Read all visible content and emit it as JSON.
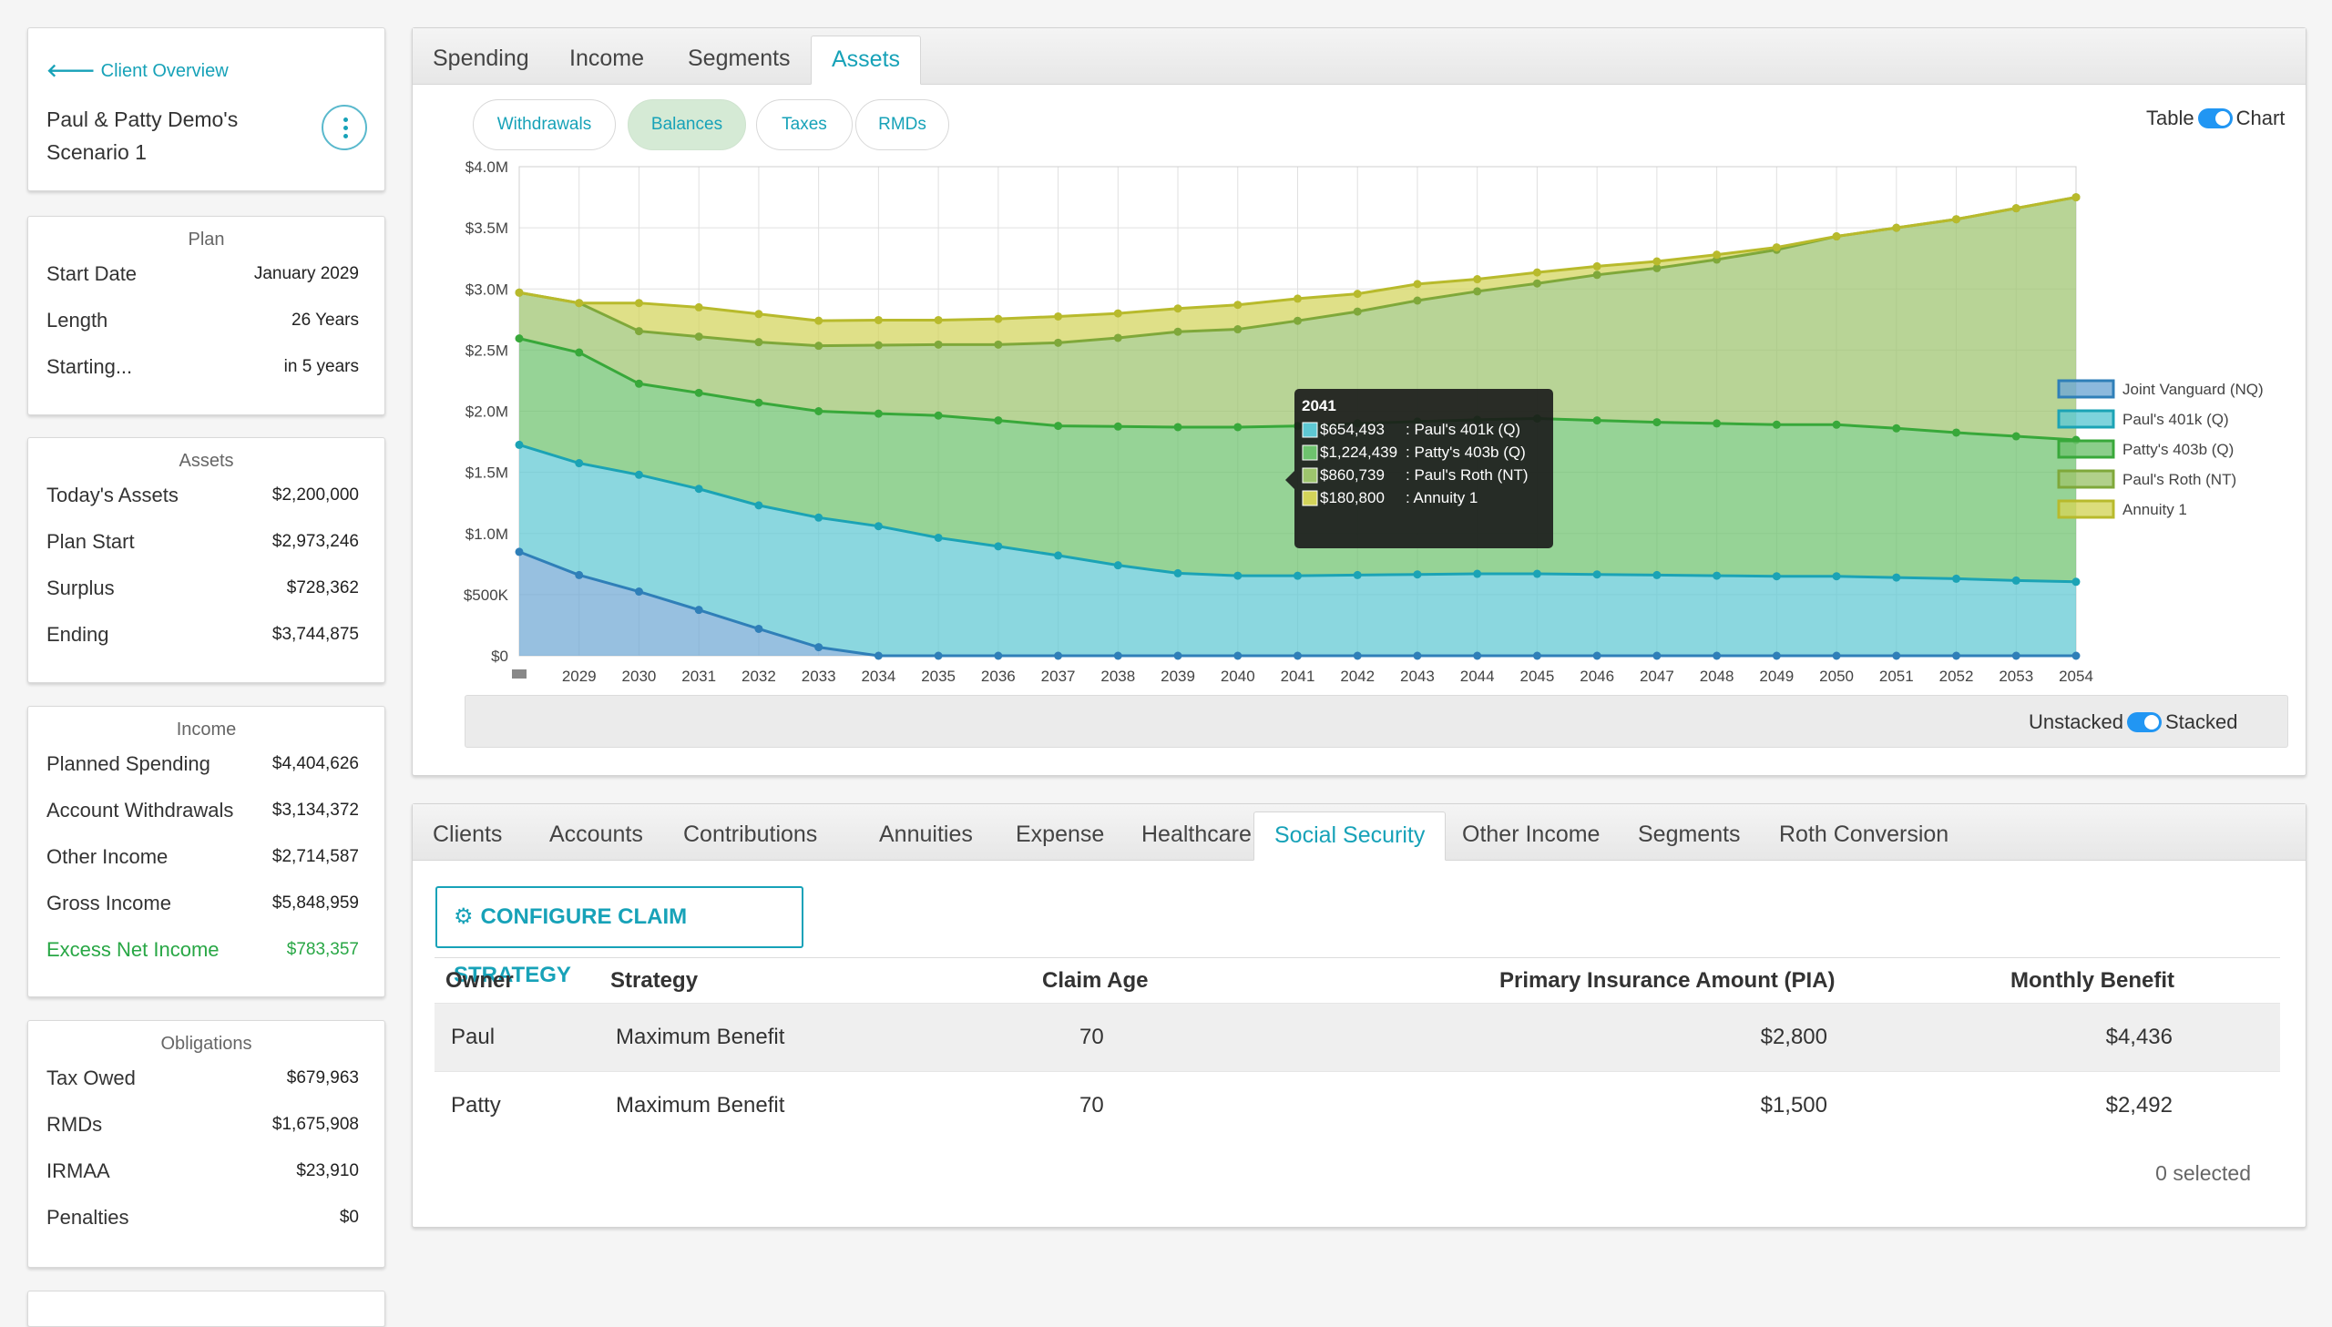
{
  "client": {
    "back_label": "Client Overview",
    "name": "Paul & Patty Demo's Scenario 1"
  },
  "plan": {
    "title": "Plan",
    "rows": [
      {
        "label": "Start Date",
        "value": "January 2029"
      },
      {
        "label": "Length",
        "value": "26 Years"
      },
      {
        "label": "Starting...",
        "value": "in 5 years"
      }
    ]
  },
  "assets": {
    "title": "Assets",
    "rows": [
      {
        "label": "Today's Assets",
        "value": "$2,200,000"
      },
      {
        "label": "Plan Start",
        "value": "$2,973,246"
      },
      {
        "label": "Surplus",
        "value": "$728,362"
      },
      {
        "label": "Ending",
        "value": "$3,744,875"
      }
    ]
  },
  "income": {
    "title": "Income",
    "rows": [
      {
        "label": "Planned Spending",
        "value": "$4,404,626"
      },
      {
        "label": "Account Withdrawals",
        "value": "$3,134,372"
      },
      {
        "label": "Other Income",
        "value": "$2,714,587"
      },
      {
        "label": "Gross Income",
        "value": "$5,848,959"
      },
      {
        "label": "Excess Net Income",
        "value": "$783,357"
      }
    ]
  },
  "obligations": {
    "title": "Obligations",
    "rows": [
      {
        "label": "Tax Owed",
        "value": "$679,963"
      },
      {
        "label": "RMDs",
        "value": "$1,675,908"
      },
      {
        "label": "IRMAA",
        "value": "$23,910"
      },
      {
        "label": "Penalties",
        "value": "$0"
      }
    ]
  },
  "top_tabs": [
    "Spending",
    "Income",
    "Segments",
    "Assets"
  ],
  "active_top_tab": "Assets",
  "sub_tabs": [
    "Withdrawals",
    "Balances",
    "Taxes",
    "RMDs"
  ],
  "active_sub_tab": "Balances",
  "view_toggle": {
    "left": "Table",
    "right": "Chart",
    "state": "Chart"
  },
  "stack_toggle": {
    "left": "Unstacked",
    "right": "Stacked",
    "state": "Stacked"
  },
  "chart_data": {
    "type": "area",
    "stacked": true,
    "x": [
      2028,
      2029,
      2030,
      2031,
      2032,
      2033,
      2034,
      2035,
      2036,
      2037,
      2038,
      2039,
      2040,
      2041,
      2042,
      2043,
      2044,
      2045,
      2046,
      2047,
      2048,
      2049,
      2050,
      2051,
      2052,
      2053,
      2054
    ],
    "x_tick_labels": [
      "2029",
      "2030",
      "2031",
      "2032",
      "2033",
      "2034",
      "2035",
      "2036",
      "2037",
      "2038",
      "2039",
      "2040",
      "2041",
      "2042",
      "2043",
      "2044",
      "2045",
      "2046",
      "2047",
      "2048",
      "2049",
      "2050",
      "2051",
      "2052",
      "2053",
      "2054"
    ],
    "y_tick_labels": [
      "$0",
      "$500K",
      "$1.0M",
      "$1.5M",
      "$2.0M",
      "$2.5M",
      "$3.0M",
      "$3.5M",
      "$4.0M"
    ],
    "ylim": [
      0,
      4000000
    ],
    "grid": true,
    "legend_position": "right",
    "series": [
      {
        "name": "Joint Vanguard (NQ)",
        "color": "#6fa8d4",
        "values": [
          850000,
          660000,
          525000,
          375000,
          220000,
          70000,
          0,
          0,
          0,
          0,
          0,
          0,
          0,
          0,
          0,
          0,
          0,
          0,
          0,
          0,
          0,
          0,
          0,
          0,
          0,
          0,
          0
        ]
      },
      {
        "name": "Paul's 401k (Q)",
        "color": "#5ec8d3",
        "values": [
          875000,
          915000,
          955000,
          990000,
          1010000,
          1060000,
          1060000,
          965000,
          895000,
          820000,
          740000,
          675000,
          655000,
          654493,
          660000,
          665000,
          670000,
          670000,
          665000,
          660000,
          655000,
          650000,
          650000,
          640000,
          630000,
          615000,
          605000
        ]
      },
      {
        "name": "Patty's 403b (Q)",
        "color": "#6ec26e",
        "values": [
          870000,
          905000,
          745000,
          785000,
          840000,
          870000,
          920000,
          1000000,
          1030000,
          1060000,
          1135000,
          1195000,
          1215000,
          1224439,
          1240000,
          1250000,
          1260000,
          1270000,
          1260000,
          1250000,
          1245000,
          1240000,
          1240000,
          1220000,
          1195000,
          1180000,
          1160000
        ]
      },
      {
        "name": "Paul's Roth (NT)",
        "color": "#9dc46d",
        "values": [
          375000,
          405000,
          430000,
          460000,
          495000,
          535000,
          560000,
          580000,
          620000,
          680000,
          725000,
          780000,
          800000,
          860739,
          915000,
          990000,
          1050000,
          1105000,
          1190000,
          1260000,
          1340000,
          1430000,
          1540000,
          1640000,
          1745000,
          1865000,
          1985000
        ]
      },
      {
        "name": "Annuity 1",
        "color": "#d3d45a",
        "values": [
          0,
          0,
          230000,
          240000,
          230000,
          205000,
          205000,
          200000,
          210000,
          215000,
          200000,
          190000,
          200000,
          180800,
          145000,
          135000,
          100000,
          90000,
          70000,
          55000,
          40000,
          20000,
          0,
          0,
          0,
          0,
          0
        ]
      }
    ],
    "tooltip": {
      "year": "2041",
      "rows": [
        {
          "value": "$654,493",
          "label": ": Paul's 401k (Q)",
          "color": "#5ec8d3"
        },
        {
          "value": "$1,224,439",
          "label": ": Patty's 403b (Q)",
          "color": "#6ec26e"
        },
        {
          "value": "$860,739",
          "label": ": Paul's Roth (NT)",
          "color": "#9dc46d"
        },
        {
          "value": "$180,800",
          "label": ": Annuity 1",
          "color": "#d3d45a"
        }
      ]
    }
  },
  "bottom_tabs": [
    "Clients",
    "Accounts",
    "Contributions",
    "Annuities",
    "Expense",
    "Healthcare",
    "Social Security",
    "Other Income",
    "Segments",
    "Roth Conversion"
  ],
  "active_bottom_tab": "Social Security",
  "config_button": "CONFIGURE CLAIM STRATEGY",
  "ss_table": {
    "headers": [
      "Owner",
      "Strategy",
      "Claim Age",
      "Primary Insurance Amount (PIA)",
      "Monthly Benefit"
    ],
    "rows": [
      [
        "Paul",
        "Maximum Benefit",
        "70",
        "$2,800",
        "$4,436"
      ],
      [
        "Patty",
        "Maximum Benefit",
        "70",
        "$1,500",
        "$2,492"
      ]
    ],
    "selected_text": "0 selected"
  }
}
